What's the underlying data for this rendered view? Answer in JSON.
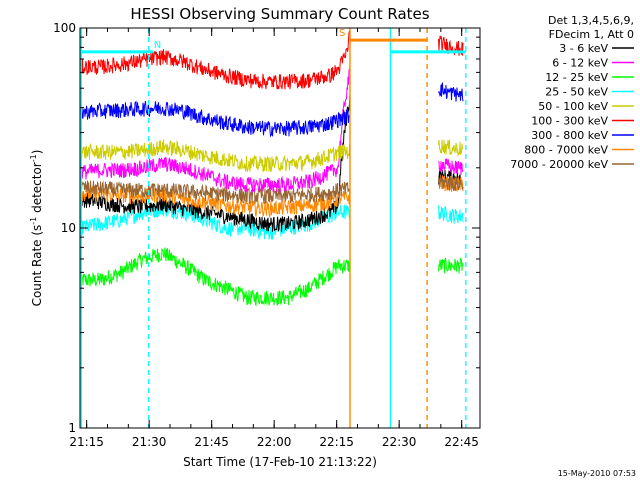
{
  "chart_data": {
    "type": "line",
    "title": "HESSI Observing Summary Count Rates",
    "xlabel": "Start Time (17-Feb-10 21:13:22)",
    "ylabel_main": "Count Rate (s",
    "ylabel_sup1": "-1",
    "ylabel_mid": " detector",
    "ylabel_sup2": "-1",
    "ylabel_end": ")",
    "yscale": "log",
    "ylim": [
      1,
      100
    ],
    "xlim_minutes": [
      0,
      96
    ],
    "x_ticks": [
      {
        "t": 1.6,
        "label": "21:15"
      },
      {
        "t": 16.6,
        "label": "21:30"
      },
      {
        "t": 31.6,
        "label": "21:45"
      },
      {
        "t": 46.6,
        "label": "22:00"
      },
      {
        "t": 61.6,
        "label": "22:15"
      },
      {
        "t": 76.6,
        "label": "22:30"
      },
      {
        "t": 91.6,
        "label": "22:45"
      }
    ],
    "y_ticks": [
      {
        "v": 1,
        "label": "1"
      },
      {
        "v": 10,
        "label": "10"
      },
      {
        "v": 100,
        "label": "100"
      }
    ],
    "legend_header": [
      "Det 1,3,4,5,6,9,",
      "FDecim 1, Att 0"
    ],
    "series": [
      {
        "name": "3 - 6 keV",
        "color": "#000000",
        "x": [
          0,
          5,
          10,
          15,
          20,
          25,
          30,
          35,
          40,
          45,
          50,
          55,
          60,
          62,
          64.8,
          86,
          90,
          92
        ],
        "y": [
          14,
          13.5,
          13,
          12.8,
          13.2,
          12.5,
          12,
          11.5,
          11,
          10.5,
          10.5,
          11,
          12,
          13,
          45,
          18,
          18,
          17
        ]
      },
      {
        "name": "6 - 12 keV",
        "color": "#ff00ff",
        "x": [
          0,
          5,
          10,
          15,
          20,
          25,
          30,
          35,
          40,
          45,
          50,
          55,
          60,
          62,
          64.8,
          86,
          90,
          92
        ],
        "y": [
          19,
          19.5,
          19.5,
          20,
          21,
          20,
          18.5,
          17,
          16.5,
          16.5,
          16.5,
          17,
          19,
          20,
          60,
          21,
          20,
          20
        ]
      },
      {
        "name": "12 - 25 keV",
        "color": "#00ff00",
        "x": [
          0,
          5,
          10,
          15,
          20,
          25,
          30,
          35,
          40,
          45,
          50,
          55,
          60,
          62,
          86,
          90,
          92
        ],
        "y": [
          5.5,
          5.5,
          6,
          7,
          7.5,
          6.5,
          5.5,
          5,
          4.5,
          4.5,
          4.5,
          5,
          6,
          6.5,
          6.5,
          6.5,
          6.5
        ]
      },
      {
        "name": "25 - 50 keV",
        "color": "#00ffff",
        "x": [
          0,
          5,
          10,
          15,
          20,
          25,
          30,
          35,
          40,
          45,
          50,
          55,
          60,
          62,
          86,
          90,
          92
        ],
        "y": [
          10,
          10.5,
          11,
          12,
          12.5,
          12,
          11,
          10,
          10,
          9.5,
          10,
          10.5,
          11.5,
          12,
          12,
          11.5,
          11.5
        ]
      },
      {
        "name": "50 - 100 keV",
        "color": "#cccc00",
        "x": [
          0,
          5,
          10,
          15,
          20,
          25,
          30,
          35,
          40,
          45,
          50,
          55,
          60,
          62,
          86,
          90,
          92
        ],
        "y": [
          24,
          24,
          24,
          24.5,
          25.5,
          24.5,
          23,
          22,
          21,
          21,
          21,
          21.5,
          23,
          24,
          26,
          25,
          25
        ]
      },
      {
        "name": "100 - 300 keV",
        "color": "#ff0000",
        "x": [
          0,
          5,
          10,
          15,
          20,
          25,
          30,
          35,
          40,
          45,
          50,
          55,
          60,
          62,
          64,
          64.8,
          86,
          88,
          90,
          92
        ],
        "y": [
          64,
          64,
          66,
          69,
          72,
          68,
          62,
          58,
          55,
          54,
          54,
          55,
          58,
          62,
          75,
          95,
          85,
          82,
          80,
          78
        ]
      },
      {
        "name": "300 - 800 keV",
        "color": "#0000ff",
        "x": [
          0,
          5,
          10,
          15,
          20,
          25,
          30,
          35,
          40,
          45,
          50,
          55,
          60,
          62,
          86,
          88,
          90,
          92
        ],
        "y": [
          38,
          38.5,
          39,
          39.5,
          40,
          38.5,
          35.5,
          33.5,
          32,
          31.5,
          31.5,
          32,
          33.5,
          35,
          50,
          48,
          47,
          46
        ]
      },
      {
        "name": "800 - 7000 keV",
        "color": "#ff8800",
        "x": [
          0,
          5,
          10,
          15,
          20,
          25,
          30,
          35,
          40,
          45,
          50,
          55,
          60,
          62,
          86,
          90,
          92
        ],
        "y": [
          15,
          14.8,
          14.6,
          14.4,
          14.8,
          14,
          13.5,
          13,
          12.7,
          12.5,
          12.7,
          13,
          13.5,
          14,
          17,
          16.5,
          16.5
        ]
      },
      {
        "name": "7000 - 20000 keV",
        "color": "#996633",
        "x": [
          0,
          10,
          20,
          30,
          40,
          50,
          60,
          62,
          86,
          92
        ],
        "y": [
          16,
          15.5,
          15.5,
          15,
          14.5,
          14.5,
          15,
          15.5,
          17,
          16.5
        ]
      }
    ],
    "flag_bars": [
      {
        "label": "",
        "color": "#00ffff",
        "start": 0.3,
        "end": 16.5,
        "level": 76
      },
      {
        "label": "N",
        "color": "#00ffff",
        "start": 16.5,
        "end": 17.5,
        "level": 76
      },
      {
        "label": "S",
        "color": "#ff8800",
        "start": 64.8,
        "end": 83.3,
        "level": 87
      },
      {
        "label": "",
        "color": "#00ffff",
        "start": 74.5,
        "end": 92.6,
        "level": 76
      }
    ],
    "vlines": [
      {
        "t": 0.3,
        "color": "#00ffff",
        "style": "solid"
      },
      {
        "t": 16.5,
        "color": "#00ffff",
        "style": "dashed"
      },
      {
        "t": 64.8,
        "color": "#ff8800",
        "style": "solid"
      },
      {
        "t": 74.5,
        "color": "#00ffff",
        "style": "solid"
      },
      {
        "t": 83.3,
        "color": "#ff8800",
        "style": "dashed"
      },
      {
        "t": 92.6,
        "color": "#00ffff",
        "style": "dashed"
      }
    ],
    "data_gaps": [
      [
        64.8,
        86
      ]
    ],
    "timestamp": "15-May-2010 07:53",
    "background": "#ffffff",
    "grid": false
  }
}
